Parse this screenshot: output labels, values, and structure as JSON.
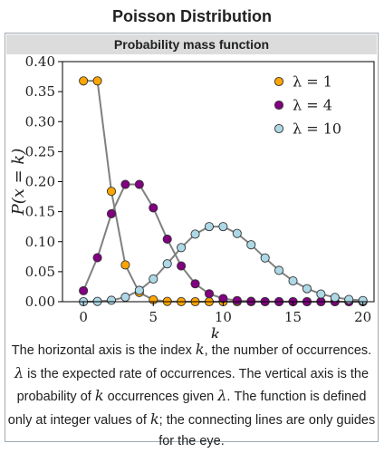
{
  "infobox": {
    "title": "Poisson Distribution",
    "subtitle": "Probability mass function"
  },
  "caption": {
    "s1": "The horizontal axis is the index ",
    "k1": "k",
    "s2": ", the number of occurrences. ",
    "l1": "λ",
    "s3": " is the expected rate of occurrences. The vertical axis is the probability of ",
    "k2": "k",
    "s4": " occurrences given ",
    "l2": "λ",
    "s5": ". The function is defined only at integer values of ",
    "k3": "k",
    "s6": "; the connecting lines are only guides for the eye."
  },
  "chart_data": {
    "type": "line",
    "xlabel": "k",
    "ylabel": "P(x = k)",
    "xlim": [
      -1.5,
      20.8
    ],
    "ylim": [
      0,
      0.4
    ],
    "xticks": [
      0,
      5,
      10,
      15,
      20
    ],
    "yticks": [
      0.0,
      0.05,
      0.1,
      0.15,
      0.2,
      0.25,
      0.3,
      0.35,
      0.4
    ],
    "ytick_labels": [
      "0.00",
      "0.05",
      "0.10",
      "0.15",
      "0.20",
      "0.25",
      "0.30",
      "0.35",
      "0.40"
    ],
    "xtick_labels": [
      "0",
      "5",
      "10",
      "15",
      "20"
    ],
    "legend_position": "top-right",
    "line_color": "#808080",
    "series": [
      {
        "name": "λ = 1",
        "color": "#ffa500",
        "x": [
          0,
          1,
          2,
          3,
          4,
          5,
          6,
          7,
          8,
          9,
          10,
          11,
          12,
          13,
          14,
          15,
          16,
          17,
          18,
          19,
          20
        ],
        "values": [
          0.3679,
          0.3679,
          0.1839,
          0.0613,
          0.0153,
          0.0031,
          0.0005,
          0.0001,
          0.0,
          0.0,
          0.0,
          0.0,
          0.0,
          0.0,
          0.0,
          0.0,
          0.0,
          0.0,
          0.0,
          0.0,
          0.0
        ]
      },
      {
        "name": "λ = 4",
        "color": "#800080",
        "x": [
          0,
          1,
          2,
          3,
          4,
          5,
          6,
          7,
          8,
          9,
          10,
          11,
          12,
          13,
          14,
          15,
          16,
          17,
          18,
          19,
          20
        ],
        "values": [
          0.0183,
          0.0733,
          0.1465,
          0.1954,
          0.1954,
          0.1563,
          0.1042,
          0.0595,
          0.0298,
          0.0132,
          0.0053,
          0.0019,
          0.0006,
          0.0002,
          0.0001,
          0.0,
          0.0,
          0.0,
          0.0,
          0.0,
          0.0
        ]
      },
      {
        "name": "λ = 10",
        "color": "#add8e6",
        "x": [
          0,
          1,
          2,
          3,
          4,
          5,
          6,
          7,
          8,
          9,
          10,
          11,
          12,
          13,
          14,
          15,
          16,
          17,
          18,
          19,
          20
        ],
        "values": [
          0.0,
          0.0005,
          0.0023,
          0.0076,
          0.0189,
          0.0378,
          0.0631,
          0.0901,
          0.1126,
          0.1251,
          0.1251,
          0.1137,
          0.0948,
          0.0729,
          0.0521,
          0.0347,
          0.0217,
          0.0128,
          0.0071,
          0.0037,
          0.0019
        ]
      }
    ]
  }
}
